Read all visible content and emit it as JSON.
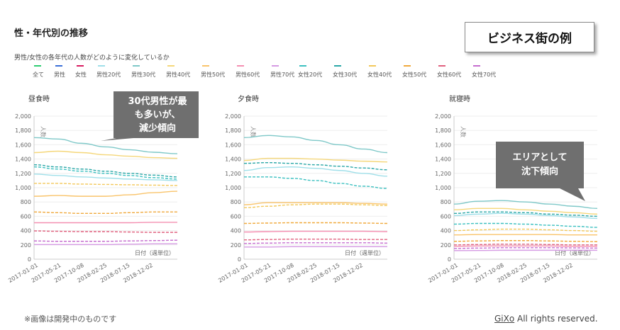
{
  "header": {
    "title": "性・年代別の推移",
    "subtitle": "男性/女性の各年代の人数がどのように変化しているか",
    "example_label": "ビジネス街の例"
  },
  "legend": [
    {
      "label": "全て",
      "color": "#2ecc71",
      "dash": false
    },
    {
      "label": "男性",
      "color": "#3a6fd8",
      "dash": false
    },
    {
      "label": "女性",
      "color": "#d81b60",
      "dash": false
    },
    {
      "label": "男性20代",
      "color": "#9fdfe9",
      "dash": false
    },
    {
      "label": "男性30代",
      "color": "#7ec8c8",
      "dash": false
    },
    {
      "label": "男性40代",
      "color": "#f5d77a",
      "dash": false
    },
    {
      "label": "男性50代",
      "color": "#f9c46b",
      "dash": false
    },
    {
      "label": "男性60代",
      "color": "#f48fb1",
      "dash": false
    },
    {
      "label": "男性70代",
      "color": "#d59ae3",
      "dash": false
    },
    {
      "label": "女性20代",
      "color": "#3cc0c0",
      "dash": true
    },
    {
      "label": "女性30代",
      "color": "#2aa7a7",
      "dash": true
    },
    {
      "label": "女性40代",
      "color": "#f3c85a",
      "dash": true
    },
    {
      "label": "女性50代",
      "color": "#f0a93c",
      "dash": true
    },
    {
      "label": "女性60代",
      "color": "#e0607e",
      "dash": true
    },
    {
      "label": "女性70代",
      "color": "#c56ccf",
      "dash": true
    }
  ],
  "chart_data": [
    {
      "type": "line",
      "title": "昼食時",
      "ylabel": "人数",
      "xlabel": "日付（週単位）",
      "ylim": [
        0,
        2000
      ],
      "yticks": [
        "0",
        "200",
        "400",
        "600",
        "800",
        "1,000",
        "1,200",
        "1,400",
        "1,600",
        "1,800",
        "2,000"
      ],
      "xticks": [
        "2017-01-01",
        "2017-05-21",
        "2017-10-08",
        "2018-02-25",
        "2018-07-15",
        "2018-12-02"
      ],
      "x": [
        0,
        1,
        2,
        3,
        4,
        5,
        6
      ],
      "series": [
        {
          "color": "#7ec8c8",
          "dash": false,
          "values": [
            1700,
            1680,
            1620,
            1570,
            1530,
            1495,
            1475
          ]
        },
        {
          "color": "#f5d77a",
          "dash": false,
          "values": [
            1490,
            1510,
            1490,
            1460,
            1440,
            1420,
            1410
          ]
        },
        {
          "color": "#2aa7a7",
          "dash": true,
          "values": [
            1320,
            1290,
            1260,
            1230,
            1200,
            1175,
            1150
          ]
        },
        {
          "color": "#3cc0c0",
          "dash": true,
          "values": [
            1290,
            1260,
            1230,
            1200,
            1170,
            1140,
            1120
          ]
        },
        {
          "color": "#9fdfe9",
          "dash": false,
          "values": [
            1190,
            1170,
            1150,
            1135,
            1120,
            1110,
            1100
          ]
        },
        {
          "color": "#f3c85a",
          "dash": true,
          "values": [
            1060,
            1060,
            1050,
            1045,
            1040,
            1035,
            1030
          ]
        },
        {
          "color": "#f9c46b",
          "dash": false,
          "values": [
            880,
            890,
            880,
            880,
            900,
            930,
            950
          ]
        },
        {
          "color": "#f0a93c",
          "dash": true,
          "values": [
            660,
            650,
            640,
            640,
            650,
            660,
            660
          ]
        },
        {
          "color": "#f48fb1",
          "dash": false,
          "values": [
            510,
            510,
            510,
            510,
            510,
            515,
            515
          ]
        },
        {
          "color": "#e0607e",
          "dash": true,
          "values": [
            395,
            390,
            385,
            385,
            380,
            375,
            375
          ]
        },
        {
          "color": "#c56ccf",
          "dash": true,
          "values": [
            255,
            250,
            250,
            250,
            255,
            260,
            265
          ]
        },
        {
          "color": "#d59ae3",
          "dash": false,
          "values": [
            205,
            205,
            205,
            205,
            210,
            215,
            215
          ]
        }
      ]
    },
    {
      "type": "line",
      "title": "夕食時",
      "ylabel": "人数",
      "xlabel": "日付（週単位）",
      "ylim": [
        0,
        2000
      ],
      "yticks": [
        "0",
        "200",
        "400",
        "600",
        "800",
        "1,000",
        "1,200",
        "1,400",
        "1,600",
        "1,800",
        "2,000"
      ],
      "xticks": [
        "2017-01-01",
        "2017-05-21",
        "2017-10-08",
        "2018-02-25",
        "2018-07-15",
        "2018-12-02"
      ],
      "x": [
        0,
        1,
        2,
        3,
        4,
        5,
        6
      ],
      "series": [
        {
          "color": "#7ec8c8",
          "dash": false,
          "values": [
            1700,
            1730,
            1710,
            1660,
            1600,
            1540,
            1490
          ]
        },
        {
          "color": "#f5d77a",
          "dash": false,
          "values": [
            1380,
            1410,
            1410,
            1400,
            1385,
            1370,
            1360
          ]
        },
        {
          "color": "#2aa7a7",
          "dash": true,
          "values": [
            1340,
            1350,
            1340,
            1320,
            1300,
            1275,
            1250
          ]
        },
        {
          "color": "#9fdfe9",
          "dash": false,
          "values": [
            1240,
            1280,
            1290,
            1270,
            1240,
            1200,
            1160
          ]
        },
        {
          "color": "#3cc0c0",
          "dash": true,
          "values": [
            1150,
            1150,
            1130,
            1100,
            1060,
            1020,
            990
          ]
        },
        {
          "color": "#f9c46b",
          "dash": false,
          "values": [
            760,
            790,
            790,
            790,
            790,
            780,
            770
          ]
        },
        {
          "color": "#f3c85a",
          "dash": true,
          "values": [
            720,
            740,
            760,
            770,
            770,
            760,
            750
          ]
        },
        {
          "color": "#f0a93c",
          "dash": true,
          "values": [
            500,
            505,
            510,
            510,
            510,
            505,
            500
          ]
        },
        {
          "color": "#f48fb1",
          "dash": false,
          "values": [
            380,
            385,
            390,
            390,
            390,
            390,
            385
          ]
        },
        {
          "color": "#e0607e",
          "dash": true,
          "values": [
            270,
            275,
            280,
            280,
            280,
            275,
            275
          ]
        },
        {
          "color": "#c56ccf",
          "dash": true,
          "values": [
            220,
            225,
            230,
            230,
            230,
            230,
            225
          ]
        },
        {
          "color": "#d59ae3",
          "dash": false,
          "values": [
            170,
            170,
            175,
            175,
            175,
            175,
            175
          ]
        }
      ]
    },
    {
      "type": "line",
      "title": "就寝時",
      "ylabel": "人数",
      "xlabel": "日付（週単位）",
      "ylim": [
        0,
        2000
      ],
      "yticks": [
        "0",
        "200",
        "400",
        "600",
        "800",
        "1,000",
        "1,200",
        "1,400",
        "1,600",
        "1,800",
        "2,000"
      ],
      "xticks": [
        "2017-01-01",
        "2017-05-21",
        "2017-10-08",
        "2018-02-25",
        "2018-07-15",
        "2018-12-02"
      ],
      "x": [
        0,
        1,
        2,
        3,
        4,
        5,
        6
      ],
      "series": [
        {
          "color": "#7ec8c8",
          "dash": false,
          "values": [
            770,
            810,
            820,
            800,
            770,
            740,
            710
          ]
        },
        {
          "color": "#f5d77a",
          "dash": false,
          "values": [
            690,
            710,
            710,
            690,
            670,
            650,
            630
          ]
        },
        {
          "color": "#2aa7a7",
          "dash": true,
          "values": [
            640,
            660,
            660,
            650,
            630,
            615,
            600
          ]
        },
        {
          "color": "#9fdfe9",
          "dash": false,
          "values": [
            610,
            630,
            640,
            630,
            610,
            590,
            570
          ]
        },
        {
          "color": "#3cc0c0",
          "dash": true,
          "values": [
            490,
            500,
            500,
            490,
            475,
            460,
            445
          ]
        },
        {
          "color": "#f3c85a",
          "dash": true,
          "values": [
            400,
            410,
            420,
            420,
            410,
            400,
            390
          ]
        },
        {
          "color": "#f9c46b",
          "dash": false,
          "values": [
            340,
            345,
            345,
            345,
            345,
            340,
            340
          ]
        },
        {
          "color": "#f0a93c",
          "dash": true,
          "values": [
            250,
            255,
            260,
            260,
            255,
            250,
            245
          ]
        },
        {
          "color": "#e0607e",
          "dash": true,
          "values": [
            200,
            205,
            210,
            210,
            205,
            200,
            200
          ]
        },
        {
          "color": "#f48fb1",
          "dash": false,
          "values": [
            180,
            185,
            185,
            185,
            185,
            180,
            180
          ]
        },
        {
          "color": "#c56ccf",
          "dash": true,
          "values": [
            150,
            155,
            160,
            160,
            160,
            158,
            155
          ]
        },
        {
          "color": "#d59ae3",
          "dash": false,
          "values": [
            120,
            122,
            125,
            125,
            125,
            125,
            125
          ]
        }
      ]
    }
  ],
  "callouts": [
    {
      "lines": [
        "30代男性が最",
        "も多いが、",
        "減少傾向"
      ]
    },
    {
      "lines": [
        "エリアとして",
        "沈下傾向"
      ]
    }
  ],
  "footer": {
    "note": "※画像は開発中のものです",
    "brand": "GiXo",
    "rights": " All rights reserved."
  }
}
